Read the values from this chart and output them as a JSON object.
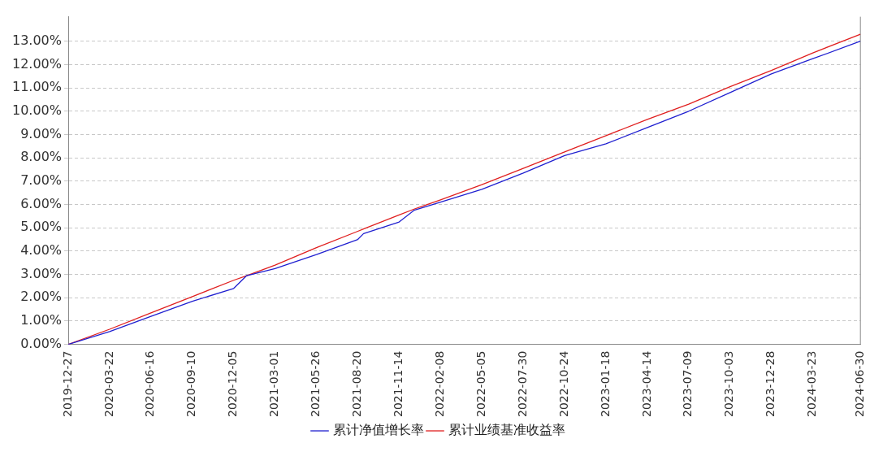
{
  "chart_data": {
    "type": "line",
    "x": [
      "2019-12-27",
      "2020-03-22",
      "2020-06-16",
      "2020-09-10",
      "2020-12-05",
      "2021-01-01",
      "2021-03-01",
      "2021-05-26",
      "2021-08-20",
      "2021-09-01",
      "2021-11-14",
      "2021-12-15",
      "2022-02-08",
      "2022-05-05",
      "2022-07-30",
      "2022-10-24",
      "2023-01-18",
      "2023-04-14",
      "2023-07-09",
      "2023-10-03",
      "2023-12-28",
      "2024-03-23",
      "2024-06-30"
    ],
    "series": [
      {
        "name": "累计净值增长率",
        "color": "#2020d0",
        "values": [
          0,
          0.55,
          1.2,
          1.85,
          2.4,
          2.95,
          3.25,
          3.85,
          4.5,
          4.75,
          5.25,
          5.75,
          6.1,
          6.65,
          7.35,
          8.1,
          8.6,
          9.3,
          10.0,
          10.8,
          11.6,
          12.25,
          13.0
        ]
      },
      {
        "name": "累计业绩基准收益率",
        "color": "#e02020",
        "values": [
          0,
          0.65,
          1.35,
          2.05,
          2.75,
          2.95,
          3.4,
          4.15,
          4.85,
          4.95,
          5.55,
          5.8,
          6.2,
          6.85,
          7.55,
          8.25,
          8.95,
          9.65,
          10.3,
          11.05,
          11.75,
          12.5,
          13.3
        ]
      }
    ],
    "xlim": [
      "2019-12-27",
      "2024-06-30"
    ],
    "xticks": [
      "2019-12-27",
      "2020-03-22",
      "2020-06-16",
      "2020-09-10",
      "2020-12-05",
      "2021-03-01",
      "2021-05-26",
      "2021-08-20",
      "2021-11-14",
      "2022-02-08",
      "2022-05-05",
      "2022-07-30",
      "2022-10-24",
      "2023-01-18",
      "2023-04-14",
      "2023-07-09",
      "2023-10-03",
      "2023-12-28",
      "2024-03-23",
      "2024-06-30"
    ],
    "ylim": [
      0,
      14.05
    ],
    "yticks": [
      {
        "value": 0,
        "label": "0.00%"
      },
      {
        "value": 1,
        "label": "1.00%"
      },
      {
        "value": 2,
        "label": "2.00%"
      },
      {
        "value": 3,
        "label": "3.00%"
      },
      {
        "value": 4,
        "label": "4.00%"
      },
      {
        "value": 5,
        "label": "5.00%"
      },
      {
        "value": 6,
        "label": "6.00%"
      },
      {
        "value": 7,
        "label": "7.00%"
      },
      {
        "value": 8,
        "label": "8.00%"
      },
      {
        "value": 9,
        "label": "9.00%"
      },
      {
        "value": 10,
        "label": "10.00%"
      },
      {
        "value": 11,
        "label": "11.00%"
      },
      {
        "value": 12,
        "label": "12.00%"
      },
      {
        "value": 13,
        "label": "13.00%"
      }
    ],
    "grid": "y",
    "legend": "bottom",
    "marker": "none",
    "line_style": "solid"
  }
}
